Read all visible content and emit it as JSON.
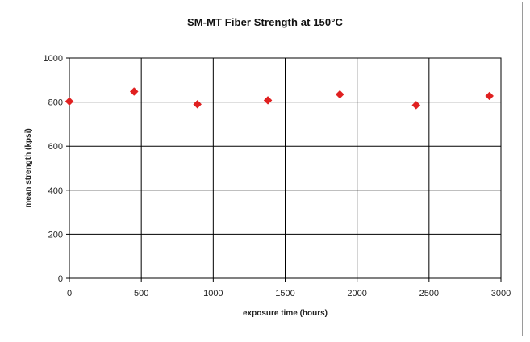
{
  "chart_data": {
    "type": "scatter",
    "title": "SM-MT Fiber Strength at 150°C",
    "xlabel": "exposure time (hours)",
    "ylabel": "mean strength (kpsi)",
    "xlim": [
      0,
      3000
    ],
    "ylim": [
      0,
      1000
    ],
    "x_ticks": [
      "0",
      "500",
      "1000",
      "1500",
      "2000",
      "2500",
      "3000"
    ],
    "y_ticks": [
      "0",
      "200",
      "400",
      "600",
      "800",
      "1000"
    ],
    "grid": true,
    "legend": "none",
    "marker": "diamond",
    "marker_color": "#e02020",
    "points": [
      {
        "x": 0,
        "y": 803
      },
      {
        "x": 450,
        "y": 848
      },
      {
        "x": 890,
        "y": 790
      },
      {
        "x": 1380,
        "y": 808
      },
      {
        "x": 1880,
        "y": 835
      },
      {
        "x": 2410,
        "y": 786
      },
      {
        "x": 2920,
        "y": 828
      }
    ]
  }
}
